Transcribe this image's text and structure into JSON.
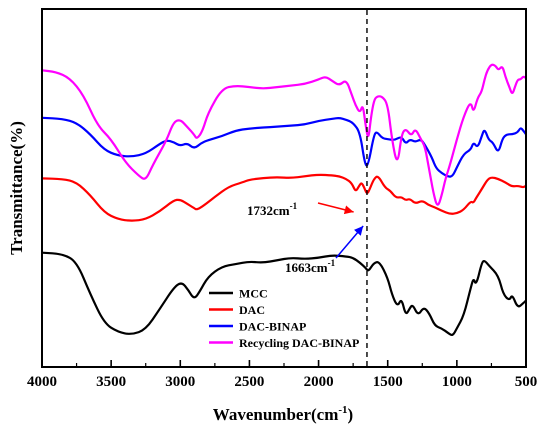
{
  "chart_data": {
    "type": "line",
    "xlabel": "Wavenumber(cm",
    "xlabel_sup": "-1",
    "xlabel_close": ")",
    "ylabel": "Transmittance(%)",
    "xlim": [
      4000,
      500
    ],
    "x_reversed": true,
    "yticks_shown": false,
    "x_ticks": [
      "4000",
      "3500",
      "3000",
      "2500",
      "2000",
      "1500",
      "1000",
      "500"
    ],
    "legend_position": "lower-left",
    "reference_line_x": 1650,
    "annotations": [
      {
        "text": "1732cm",
        "sup": "-1",
        "x": 1732
      },
      {
        "text": "1663cm",
        "sup": "-1",
        "x": 1663
      }
    ],
    "series": [
      {
        "name": "MCC",
        "color": "#000000",
        "points": [
          [
            4000,
            0.22
          ],
          [
            3850,
            0.23
          ],
          [
            3750,
            0.29
          ],
          [
            3650,
            0.55
          ],
          [
            3550,
            0.78
          ],
          [
            3450,
            0.85
          ],
          [
            3350,
            0.87
          ],
          [
            3250,
            0.83
          ],
          [
            3150,
            0.67
          ],
          [
            3050,
            0.5
          ],
          [
            2990,
            0.45
          ],
          [
            2940,
            0.52
          ],
          [
            2900,
            0.59
          ],
          [
            2860,
            0.53
          ],
          [
            2800,
            0.41
          ],
          [
            2700,
            0.33
          ],
          [
            2600,
            0.31
          ],
          [
            2500,
            0.29
          ],
          [
            2400,
            0.3
          ],
          [
            2300,
            0.28
          ],
          [
            2200,
            0.26
          ],
          [
            2100,
            0.27
          ],
          [
            2000,
            0.26
          ],
          [
            1900,
            0.24
          ],
          [
            1800,
            0.25
          ],
          [
            1750,
            0.26
          ],
          [
            1700,
            0.3
          ],
          [
            1660,
            0.34
          ],
          [
            1640,
            0.37
          ],
          [
            1600,
            0.3
          ],
          [
            1560,
            0.29
          ],
          [
            1500,
            0.42
          ],
          [
            1470,
            0.55
          ],
          [
            1430,
            0.65
          ],
          [
            1400,
            0.58
          ],
          [
            1370,
            0.72
          ],
          [
            1340,
            0.66
          ],
          [
            1320,
            0.63
          ],
          [
            1280,
            0.72
          ],
          [
            1240,
            0.65
          ],
          [
            1200,
            0.7
          ],
          [
            1160,
            0.8
          ],
          [
            1110,
            0.82
          ],
          [
            1060,
            0.86
          ],
          [
            1030,
            0.88
          ],
          [
            1000,
            0.82
          ],
          [
            950,
            0.72
          ],
          [
            900,
            0.5
          ],
          [
            880,
            0.42
          ],
          [
            860,
            0.48
          ],
          [
            820,
            0.3
          ],
          [
            800,
            0.28
          ],
          [
            770,
            0.32
          ],
          [
            700,
            0.4
          ],
          [
            665,
            0.55
          ],
          [
            620,
            0.6
          ],
          [
            600,
            0.55
          ],
          [
            560,
            0.66
          ],
          [
            520,
            0.62
          ],
          [
            500,
            0.6
          ]
        ]
      },
      {
        "name": "DAC",
        "color": "#ff0000",
        "points": [
          [
            4000,
            0.075
          ],
          [
            3850,
            0.08
          ],
          [
            3750,
            0.12
          ],
          [
            3650,
            0.27
          ],
          [
            3550,
            0.47
          ],
          [
            3450,
            0.55
          ],
          [
            3350,
            0.57
          ],
          [
            3250,
            0.55
          ],
          [
            3150,
            0.46
          ],
          [
            3050,
            0.33
          ],
          [
            3000,
            0.32
          ],
          [
            2950,
            0.37
          ],
          [
            2900,
            0.42
          ],
          [
            2880,
            0.44
          ],
          [
            2830,
            0.39
          ],
          [
            2750,
            0.29
          ],
          [
            2650,
            0.17
          ],
          [
            2550,
            0.12
          ],
          [
            2500,
            0.09
          ],
          [
            2400,
            0.07
          ],
          [
            2300,
            0.06
          ],
          [
            2200,
            0.07
          ],
          [
            2100,
            0.05
          ],
          [
            2000,
            0.03
          ],
          [
            1900,
            0.04
          ],
          [
            1850,
            0.05
          ],
          [
            1800,
            0.08
          ],
          [
            1760,
            0.13
          ],
          [
            1732,
            0.23
          ],
          [
            1710,
            0.17
          ],
          [
            1690,
            0.12
          ],
          [
            1670,
            0.18
          ],
          [
            1650,
            0.26
          ],
          [
            1630,
            0.2
          ],
          [
            1600,
            0.08
          ],
          [
            1570,
            0.04
          ],
          [
            1520,
            0.18
          ],
          [
            1480,
            0.22
          ],
          [
            1440,
            0.3
          ],
          [
            1400,
            0.29
          ],
          [
            1370,
            0.33
          ],
          [
            1340,
            0.31
          ],
          [
            1300,
            0.37
          ],
          [
            1250,
            0.33
          ],
          [
            1210,
            0.38
          ],
          [
            1160,
            0.41
          ],
          [
            1110,
            0.45
          ],
          [
            1050,
            0.49
          ],
          [
            1000,
            0.48
          ],
          [
            950,
            0.44
          ],
          [
            900,
            0.34
          ],
          [
            880,
            0.36
          ],
          [
            860,
            0.3
          ],
          [
            820,
            0.2
          ],
          [
            780,
            0.09
          ],
          [
            750,
            0.06
          ],
          [
            700,
            0.08
          ],
          [
            650,
            0.12
          ],
          [
            600,
            0.17
          ],
          [
            560,
            0.16
          ],
          [
            520,
            0.18
          ],
          [
            500,
            0.16
          ]
        ]
      },
      {
        "name": "DAC-BINAP",
        "color": "#0000ff",
        "points": [
          [
            4000,
            0.05
          ],
          [
            3850,
            0.06
          ],
          [
            3750,
            0.1
          ],
          [
            3650,
            0.22
          ],
          [
            3550,
            0.38
          ],
          [
            3450,
            0.44
          ],
          [
            3350,
            0.45
          ],
          [
            3250,
            0.42
          ],
          [
            3150,
            0.32
          ],
          [
            3100,
            0.28
          ],
          [
            3050,
            0.3
          ],
          [
            3000,
            0.34
          ],
          [
            2950,
            0.31
          ],
          [
            2900,
            0.37
          ],
          [
            2850,
            0.31
          ],
          [
            2800,
            0.28
          ],
          [
            2700,
            0.24
          ],
          [
            2600,
            0.18
          ],
          [
            2500,
            0.16
          ],
          [
            2400,
            0.15
          ],
          [
            2300,
            0.14
          ],
          [
            2200,
            0.13
          ],
          [
            2100,
            0.12
          ],
          [
            2000,
            0.08
          ],
          [
            1900,
            0.06
          ],
          [
            1850,
            0.05
          ],
          [
            1800,
            0.07
          ],
          [
            1750,
            0.1
          ],
          [
            1700,
            0.2
          ],
          [
            1663,
            0.55
          ],
          [
            1640,
            0.53
          ],
          [
            1600,
            0.23
          ],
          [
            1580,
            0.19
          ],
          [
            1540,
            0.26
          ],
          [
            1500,
            0.27
          ],
          [
            1450,
            0.28
          ],
          [
            1400,
            0.24
          ],
          [
            1370,
            0.32
          ],
          [
            1340,
            0.27
          ],
          [
            1300,
            0.3
          ],
          [
            1260,
            0.27
          ],
          [
            1230,
            0.33
          ],
          [
            1180,
            0.46
          ],
          [
            1150,
            0.57
          ],
          [
            1110,
            0.62
          ],
          [
            1060,
            0.66
          ],
          [
            1030,
            0.65
          ],
          [
            1000,
            0.56
          ],
          [
            950,
            0.42
          ],
          [
            900,
            0.38
          ],
          [
            880,
            0.3
          ],
          [
            850,
            0.36
          ],
          [
            820,
            0.24
          ],
          [
            800,
            0.16
          ],
          [
            770,
            0.28
          ],
          [
            740,
            0.3
          ],
          [
            700,
            0.42
          ],
          [
            670,
            0.26
          ],
          [
            640,
            0.22
          ],
          [
            600,
            0.22
          ],
          [
            560,
            0.2
          ],
          [
            540,
            0.15
          ],
          [
            520,
            0.18
          ],
          [
            500,
            0.22
          ]
        ]
      },
      {
        "name": "Recycling DAC-BINAP",
        "color": "#ff00ff",
        "points": [
          [
            4000,
            0.1
          ],
          [
            3900,
            0.11
          ],
          [
            3800,
            0.15
          ],
          [
            3700,
            0.26
          ],
          [
            3600,
            0.46
          ],
          [
            3500,
            0.55
          ],
          [
            3400,
            0.7
          ],
          [
            3300,
            0.79
          ],
          [
            3250,
            0.82
          ],
          [
            3200,
            0.72
          ],
          [
            3100,
            0.56
          ],
          [
            3050,
            0.44
          ],
          [
            3000,
            0.42
          ],
          [
            2950,
            0.47
          ],
          [
            2900,
            0.52
          ],
          [
            2880,
            0.55
          ],
          [
            2840,
            0.5
          ],
          [
            2800,
            0.38
          ],
          [
            2700,
            0.22
          ],
          [
            2600,
            0.2
          ],
          [
            2500,
            0.21
          ],
          [
            2400,
            0.22
          ],
          [
            2300,
            0.21
          ],
          [
            2200,
            0.2
          ],
          [
            2100,
            0.19
          ],
          [
            2000,
            0.16
          ],
          [
            1950,
            0.14
          ],
          [
            1900,
            0.17
          ],
          [
            1850,
            0.2
          ],
          [
            1800,
            0.16
          ],
          [
            1760,
            0.26
          ],
          [
            1732,
            0.33
          ],
          [
            1700,
            0.38
          ],
          [
            1680,
            0.32
          ],
          [
            1660,
            0.46
          ],
          [
            1640,
            0.56
          ],
          [
            1620,
            0.4
          ],
          [
            1600,
            0.3
          ],
          [
            1580,
            0.27
          ],
          [
            1540,
            0.27
          ],
          [
            1500,
            0.32
          ],
          [
            1470,
            0.55
          ],
          [
            1430,
            0.73
          ],
          [
            1400,
            0.52
          ],
          [
            1370,
            0.48
          ],
          [
            1330,
            0.53
          ],
          [
            1300,
            0.48
          ],
          [
            1260,
            0.55
          ],
          [
            1230,
            0.6
          ],
          [
            1200,
            0.75
          ],
          [
            1170,
            0.9
          ],
          [
            1140,
            1.0
          ],
          [
            1110,
            0.92
          ],
          [
            1080,
            0.8
          ],
          [
            1050,
            0.72
          ],
          [
            1000,
            0.55
          ],
          [
            950,
            0.4
          ],
          [
            900,
            0.3
          ],
          [
            880,
            0.38
          ],
          [
            850,
            0.28
          ],
          [
            820,
            0.24
          ],
          [
            800,
            0.16
          ],
          [
            780,
            0.1
          ],
          [
            750,
            0.06
          ],
          [
            720,
            0.07
          ],
          [
            700,
            0.1
          ],
          [
            670,
            0.07
          ],
          [
            650,
            0.14
          ],
          [
            620,
            0.21
          ],
          [
            600,
            0.26
          ],
          [
            580,
            0.21
          ],
          [
            560,
            0.16
          ],
          [
            540,
            0.16
          ],
          [
            520,
            0.14
          ],
          [
            500,
            0.15
          ]
        ]
      }
    ]
  }
}
